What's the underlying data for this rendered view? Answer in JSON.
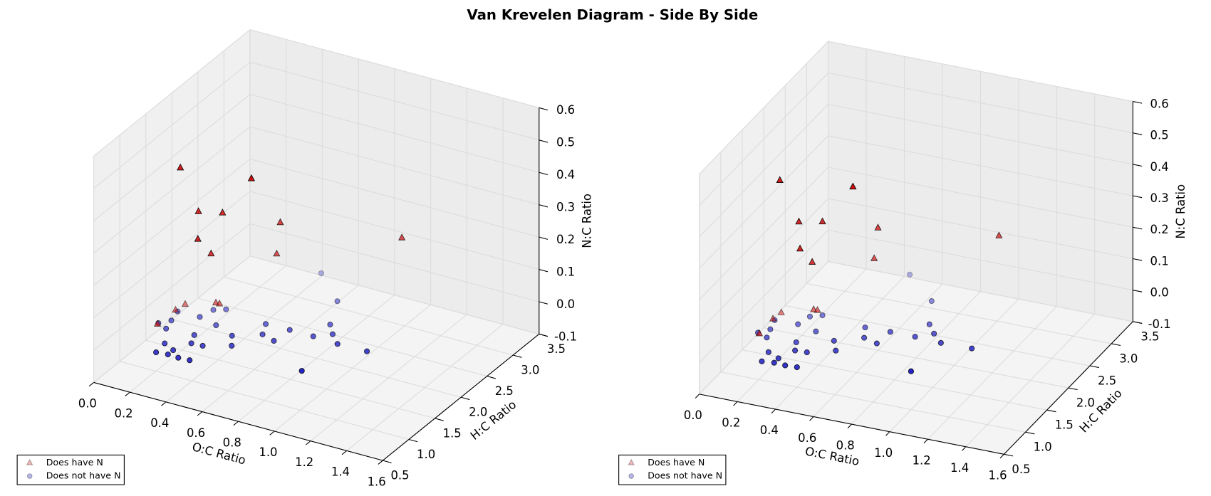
{
  "title": "Van Krevelen Diagram - Side By Side",
  "chart_data": [
    {
      "type": "scatter3d",
      "xlabel": "O:C Ratio",
      "ylabel": "H:C Ratio",
      "zlabel": "N:C Ratio",
      "xlim": [
        0,
        1.6
      ],
      "ylim": [
        0.5,
        3.5
      ],
      "zlim": [
        -0.1,
        0.6
      ],
      "xticks": [
        {
          "value": 0,
          "label": "0.0"
        },
        0.2,
        0.4,
        0.6,
        0.8,
        {
          "value": 1,
          "label": "1.0"
        },
        1.2,
        1.4,
        1.6
      ],
      "yticks": [
        0.5,
        {
          "value": 1,
          "label": "1.0"
        },
        1.5,
        {
          "value": 2,
          "label": "2.0"
        },
        2.5,
        {
          "value": 3,
          "label": "3.0"
        },
        3.5
      ],
      "zticks": [
        -0.1,
        {
          "value": 0,
          "label": "0.0"
        },
        0.1,
        0.2,
        0.3,
        0.4,
        0.5,
        0.6
      ],
      "grid": true,
      "legend": "lower left",
      "series": [
        {
          "name": "Does have N",
          "color": "#d01010",
          "marker": "triangle",
          "x": [
            0.22,
            0.57,
            0.32,
            0.41,
            0.6,
            1.1,
            0.36,
            0.39,
            0.58,
            0.16,
            0.33,
            0.35,
            0.15,
            0.18
          ],
          "y": [
            1.4,
            1.55,
            1.4,
            1.55,
            2.0,
            2.6,
            1.25,
            1.4,
            2.0,
            1.7,
            1.7,
            1.7,
            1.55,
            1.1
          ],
          "z": [
            0.48,
            0.48,
            0.36,
            0.35,
            0.29,
            0.24,
            0.3,
            0.24,
            0.19,
            0.01,
            0.04,
            0.04,
            0.01,
            0.03
          ]
        },
        {
          "name": "Does not have N",
          "color": "#1010c0",
          "marker": "circle",
          "x": [
            0.55,
            0.76,
            0.15,
            0.29,
            0.34,
            0.27,
            0.17,
            0.38,
            0.58,
            0.71,
            0.85,
            0.84,
            0.91,
            0.98,
            0.19,
            0.34,
            0.26,
            0.37,
            0.43,
            0.55,
            0.5,
            0.62,
            0.7,
            0.27,
            0.33,
            0.39,
            0.45,
            0.97,
            1.14,
            0.13,
            0.33
          ],
          "y": [
            2.96,
            2.54,
            1.59,
            1.79,
            1.86,
            1.6,
            1.4,
            1.53,
            1.79,
            1.8,
            2.09,
            1.8,
            1.93,
            1.78,
            1.23,
            1.25,
            0.96,
            1.09,
            1.1,
            1.24,
            1.42,
            1.59,
            1.53,
            0.76,
            0.78,
            0.77,
            0.78,
            1.13,
            1.79,
            1.29,
            0.88
          ],
          "z": [
            0,
            0,
            0,
            0,
            0,
            0,
            0,
            0,
            0,
            0,
            0,
            0,
            0,
            0,
            0,
            0,
            0,
            0,
            0,
            0,
            0,
            0,
            0,
            0,
            0,
            0,
            0,
            0,
            0,
            0,
            0
          ]
        }
      ]
    },
    {
      "type": "scatter3d",
      "xlabel": "O:C Ratio",
      "ylabel": "H:C Ratio",
      "zlabel": "N:C Ratio",
      "xlim": [
        0,
        1.6
      ],
      "ylim": [
        0.5,
        3.5
      ],
      "zlim": [
        -0.1,
        0.6
      ],
      "xticks": [
        {
          "value": 0,
          "label": "0.0"
        },
        0.2,
        0.4,
        0.6,
        0.8,
        {
          "value": 1,
          "label": "1.0"
        },
        1.2,
        1.4,
        1.6
      ],
      "yticks": [
        0.5,
        {
          "value": 1,
          "label": "1.0"
        },
        1.5,
        {
          "value": 2,
          "label": "2.0"
        },
        2.5,
        {
          "value": 3,
          "label": "3.0"
        },
        3.5
      ],
      "zticks": [
        -0.1,
        {
          "value": 0,
          "label": "0.0"
        },
        0.1,
        0.2,
        0.3,
        0.4,
        0.5,
        0.6
      ],
      "grid": true,
      "legend": "lower left",
      "series": [
        {
          "name": "Does have N",
          "color": "#d01010",
          "marker": "triangle",
          "x": [
            0.22,
            0.57,
            0.32,
            0.41,
            0.6,
            1.1,
            0.36,
            0.39,
            0.58,
            0.16,
            0.33,
            0.35,
            0.15,
            0.18
          ],
          "y": [
            1.4,
            1.55,
            1.4,
            1.55,
            2.0,
            2.6,
            1.25,
            1.4,
            2.0,
            1.7,
            1.7,
            1.7,
            1.55,
            1.1
          ],
          "z": [
            0.48,
            0.48,
            0.36,
            0.35,
            0.29,
            0.24,
            0.3,
            0.24,
            0.19,
            0.01,
            0.04,
            0.04,
            0.01,
            0.03
          ]
        },
        {
          "name": "Does not have N",
          "color": "#1010c0",
          "marker": "circle",
          "x": [
            0.55,
            0.76,
            0.15,
            0.29,
            0.34,
            0.27,
            0.17,
            0.38,
            0.58,
            0.71,
            0.85,
            0.84,
            0.91,
            0.98,
            0.19,
            0.34,
            0.26,
            0.37,
            0.43,
            0.55,
            0.5,
            0.62,
            0.7,
            0.27,
            0.33,
            0.39,
            0.45,
            0.97,
            1.14,
            0.13,
            0.33
          ],
          "y": [
            2.96,
            2.54,
            1.59,
            1.79,
            1.86,
            1.6,
            1.4,
            1.53,
            1.79,
            1.8,
            2.09,
            1.8,
            1.93,
            1.78,
            1.23,
            1.25,
            0.96,
            1.09,
            1.1,
            1.24,
            1.42,
            1.59,
            1.53,
            0.76,
            0.78,
            0.77,
            0.78,
            1.13,
            1.79,
            1.29,
            0.88
          ],
          "z": [
            0,
            0,
            0,
            0,
            0,
            0,
            0,
            0,
            0,
            0,
            0,
            0,
            0,
            0,
            0,
            0,
            0,
            0,
            0,
            0,
            0,
            0,
            0,
            0,
            0,
            0,
            0,
            0,
            0,
            0,
            0
          ]
        }
      ]
    }
  ]
}
